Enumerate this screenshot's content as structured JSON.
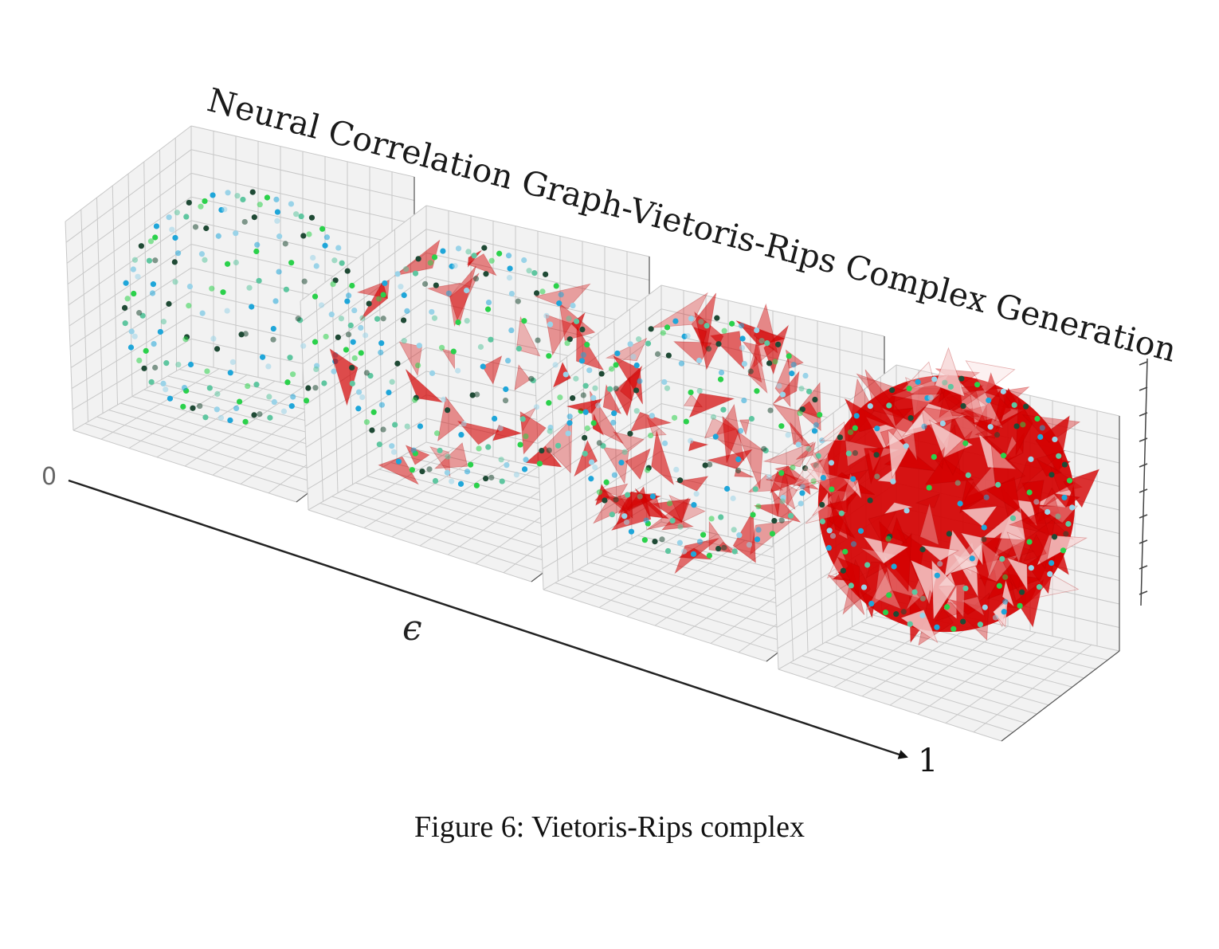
{
  "figure": {
    "title": "Neural Correlation Graph-Vietoris-Rips Complex Generation",
    "axis_label": "ϵ",
    "axis_start": "0",
    "axis_end": "1",
    "caption": "Figure 6: Vietoris-Rips complex"
  },
  "colors": {
    "complex_fill": "#d40000",
    "point_blue": "#1fa6d9",
    "point_green": "#2bd14b",
    "point_dark": "#1f4a35",
    "grid": "#c8c8c8",
    "pane": "#f2f2f2"
  },
  "panels": [
    {
      "stage": 1,
      "fill_density": 0.0
    },
    {
      "stage": 2,
      "fill_density": 0.18
    },
    {
      "stage": 3,
      "fill_density": 0.45
    },
    {
      "stage": 4,
      "fill_density": 0.9
    }
  ]
}
